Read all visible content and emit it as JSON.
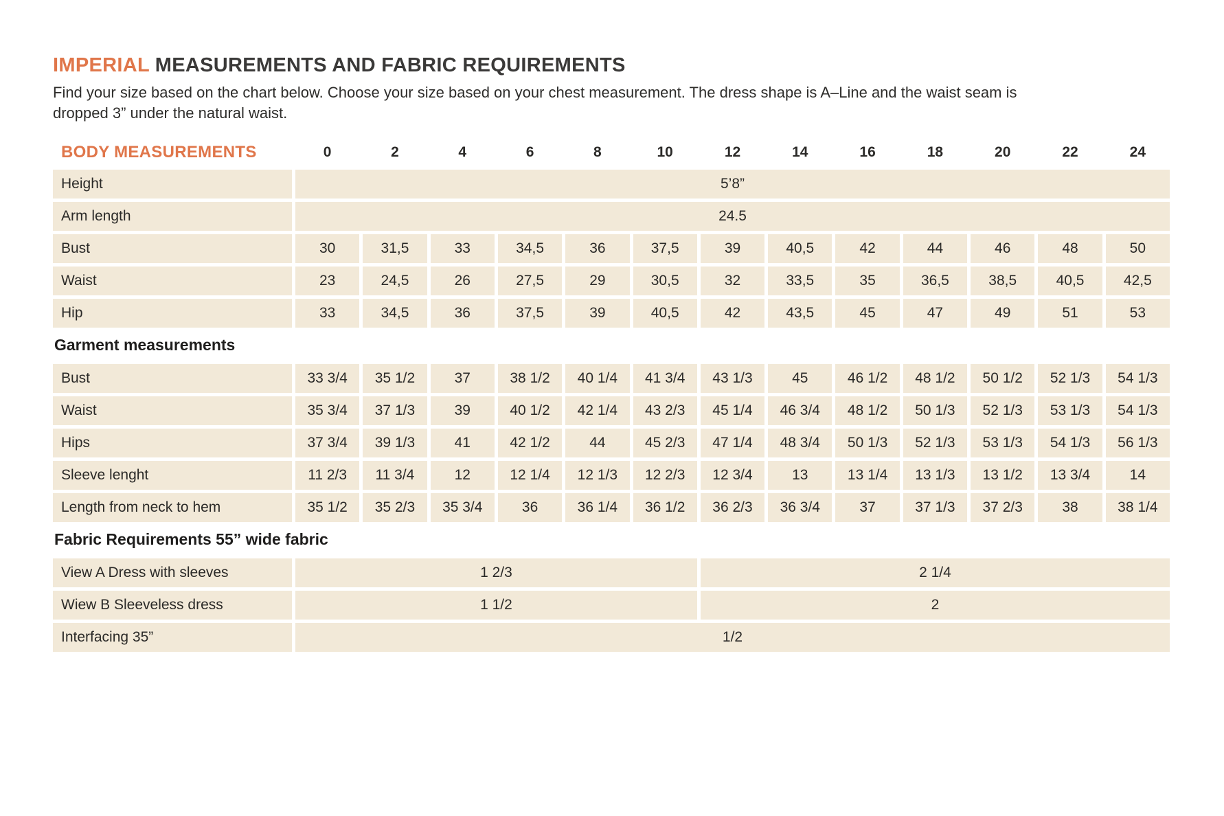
{
  "page": {
    "title_highlight": "IMPERIAL",
    "title_rest": "MEASUREMENTS AND FABRIC REQUIREMENTS",
    "subtitle": "Find your size based on the chart below. Choose your size based on your chest measurement. The dress shape is A–Line and the waist seam is dropped 3” under the natural waist."
  },
  "colors": {
    "accent_orange": "#e0764a",
    "cell_beige": "#f2e9d8",
    "text_dark": "#2b2a28"
  },
  "table": {
    "header_label": "BODY MEASUREMENTS",
    "sizes": [
      "0",
      "2",
      "4",
      "6",
      "8",
      "10",
      "12",
      "14",
      "16",
      "18",
      "20",
      "22",
      "24"
    ],
    "body_section": {
      "span_rows": [
        {
          "label": "Height",
          "value": "5’8”"
        },
        {
          "label": "Arm length",
          "value": "24.5"
        }
      ],
      "rows": [
        {
          "label": "Bust",
          "values": [
            "30",
            "31,5",
            "33",
            "34,5",
            "36",
            "37,5",
            "39",
            "40,5",
            "42",
            "44",
            "46",
            "48",
            "50"
          ]
        },
        {
          "label": "Waist",
          "values": [
            "23",
            "24,5",
            "26",
            "27,5",
            "29",
            "30,5",
            "32",
            "33,5",
            "35",
            "36,5",
            "38,5",
            "40,5",
            "42,5"
          ]
        },
        {
          "label": "Hip",
          "values": [
            "33",
            "34,5",
            "36",
            "37,5",
            "39",
            "40,5",
            "42",
            "43,5",
            "45",
            "47",
            "49",
            "51",
            "53"
          ]
        }
      ]
    },
    "garment_section": {
      "heading": "Garment measurements",
      "rows": [
        {
          "label": "Bust",
          "values": [
            "33 3/4",
            "35 1/2",
            "37",
            "38 1/2",
            "40 1/4",
            "41 3/4",
            "43 1/3",
            "45",
            "46 1/2",
            "48 1/2",
            "50 1/2",
            "52 1/3",
            "54 1/3"
          ]
        },
        {
          "label": "Waist",
          "values": [
            "35 3/4",
            "37 1/3",
            "39",
            "40 1/2",
            "42 1/4",
            "43 2/3",
            "45 1/4",
            "46 3/4",
            "48 1/2",
            "50 1/3",
            "52 1/3",
            "53 1/3",
            "54 1/3"
          ]
        },
        {
          "label": "Hips",
          "values": [
            "37 3/4",
            "39 1/3",
            "41",
            "42 1/2",
            "44",
            "45 2/3",
            "47 1/4",
            "48 3/4",
            "50 1/3",
            "52 1/3",
            "53 1/3",
            "54 1/3",
            "56 1/3"
          ]
        },
        {
          "label": "Sleeve lenght",
          "values": [
            "11 2/3",
            "11 3/4",
            "12",
            "12 1/4",
            "12 1/3",
            "12 2/3",
            "12 3/4",
            "13",
            "13 1/4",
            "13 1/3",
            "13 1/2",
            "13 3/4",
            "14"
          ]
        },
        {
          "label": "Length from neck to hem",
          "values": [
            "35 1/2",
            "35 2/3",
            "35 3/4",
            "36",
            "36 1/4",
            "36 1/2",
            "36 2/3",
            "36 3/4",
            "37",
            "37 1/3",
            "37 2/3",
            "38",
            "38 1/4"
          ]
        }
      ]
    },
    "fabric_section": {
      "heading": "Fabric Requirements 55” wide fabric",
      "rows": [
        {
          "label": "View A Dress with sleeves",
          "left_value": "1 2/3",
          "right_value": "2 1/4"
        },
        {
          "label": "Wiew B Sleeveless dress",
          "left_value": "1 1/2",
          "right_value": "2"
        },
        {
          "label": "Interfacing 35”",
          "full_value": "1/2"
        }
      ]
    }
  }
}
